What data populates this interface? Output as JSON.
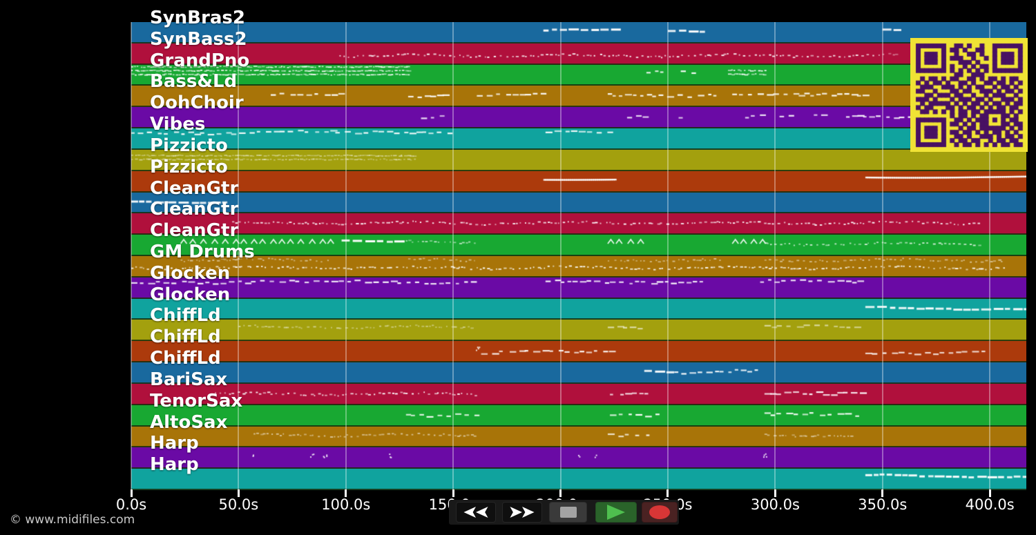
{
  "watermark": "© www.midifiles.com",
  "colors": {
    "background": "#000000",
    "note": "#ffffff",
    "gridline": "rgba(255,255,255,0.35)",
    "band_separator": "rgba(24,46,12,0.85)",
    "palette_cycle": [
      "#19699e",
      "#b0103c",
      "#18a832",
      "#a87408",
      "#6a0aa5",
      "#10a39e",
      "#a3a00e",
      "#ac3a0c"
    ],
    "qr_yellow": "#f0e335",
    "qr_purple": "#481163",
    "play_green": "#4fbf4f",
    "record_red": "#d83636",
    "stop_gray": "#a3a3a3"
  },
  "transport": {
    "buttons": [
      {
        "id": "rewind",
        "icon": "rewind-icon"
      },
      {
        "id": "fast-forward",
        "icon": "fast-forward-icon"
      },
      {
        "id": "stop",
        "icon": "stop-icon"
      },
      {
        "id": "play",
        "icon": "play-icon"
      },
      {
        "id": "record",
        "icon": "record-icon"
      }
    ]
  },
  "qr": {
    "rows": [
      "1111111001101001001111111",
      "1000001011010011001000001",
      "1011101001001101001011101",
      "1011101011100100101011101",
      "1011101000111010001011101",
      "1000001010010101101000001",
      "1111111010101010101111111",
      "0000000001100111000000000",
      "0101101011001101011010110",
      "1010110100110100110110101",
      "0111001110101011001011010",
      "1100100011011001110101101",
      "0011011101100100101110010",
      "1110100010111011010011101",
      "0101111101010110101101011",
      "1011000110101101010110110",
      "0110101010110110111110101",
      "0000000010110101100011010",
      "1111111001101011101010110",
      "1000001011010101100011011",
      "1011101000101101111110101",
      "1011101011011010101101010",
      "1011101001101001110101101",
      "1000001010110110010110110",
      "1111111001011010101011011"
    ]
  },
  "chart_data": {
    "type": "midi-track-timeline",
    "time_axis": {
      "unit": "s",
      "tick_interval_s": 50,
      "visible_duration_s": 417,
      "ticks": [
        {
          "value": 0,
          "label": "0.0s"
        },
        {
          "value": 50,
          "label": "50.0s"
        },
        {
          "value": 100,
          "label": "100.0s"
        },
        {
          "value": 150,
          "label": "150.0s"
        },
        {
          "value": 200,
          "label": "200.0s"
        },
        {
          "value": 250,
          "label": "250.0s"
        },
        {
          "value": 300,
          "label": "300.0s"
        },
        {
          "value": 350,
          "label": "350.0s"
        },
        {
          "value": 400,
          "label": "400.0s"
        }
      ]
    },
    "tracks": [
      {
        "name": "SynBras2",
        "color": "#19699e",
        "runs": [
          [
            192,
            224,
            "dashline",
            0.36
          ],
          [
            250,
            265,
            "dashline",
            0.34
          ],
          [
            350,
            358,
            "dashline",
            0.34
          ]
        ]
      },
      {
        "name": "SynBass2",
        "color": "#b0103c",
        "runs": [
          [
            97,
            349,
            "dots",
            0.55
          ],
          [
            350,
            357,
            "dots",
            0.52,
            0.6
          ]
        ]
      },
      {
        "name": "GrandPno",
        "color": "#18a832",
        "runs": [
          [
            0,
            129,
            "dense3",
            0.08
          ],
          [
            240,
            248,
            "dash",
            0.3
          ],
          [
            256,
            263,
            "dash",
            0.3
          ],
          [
            278,
            295,
            "dense2",
            0.25
          ]
        ]
      },
      {
        "name": "Bass&Ld",
        "color": "#a87408",
        "runs": [
          [
            65,
            98,
            "dash",
            0.4
          ],
          [
            129,
            145,
            "dash",
            0.4
          ],
          [
            161,
            192,
            "dash",
            0.42
          ],
          [
            222,
            275,
            "dash",
            0.4
          ],
          [
            280,
            341,
            "dash",
            0.4
          ]
        ]
      },
      {
        "name": "OohChoir",
        "color": "#6a0aa5",
        "runs": [
          [
            135,
            145,
            "dash",
            0.4,
            0.9
          ],
          [
            231,
            239,
            "dash",
            0.4
          ],
          [
            255,
            259,
            "dash",
            0.4
          ],
          [
            286,
            294,
            "dash",
            0.42
          ],
          [
            302,
            310,
            "dash",
            0.42
          ],
          [
            318,
            325,
            "dash",
            0.42
          ],
          [
            333,
            363,
            "dash",
            0.4
          ]
        ]
      },
      {
        "name": "Vibes",
        "color": "#10a39e",
        "runs": [
          [
            0,
            150,
            "dash",
            0.16
          ],
          [
            193,
            224,
            "dash",
            0.16
          ]
        ]
      },
      {
        "name": "Pizzicto",
        "color": "#a3a00e",
        "runs": [
          [
            0,
            132,
            "dense2",
            0.25,
            0.55
          ]
        ]
      },
      {
        "name": "Pizzicto",
        "color": "#ac3a0c",
        "runs": [
          [
            192,
            225,
            "line",
            0.34
          ],
          [
            342,
            417,
            "line",
            0.24
          ]
        ]
      },
      {
        "name": "CleanGtr",
        "color": "#19699e",
        "runs": [
          [
            0,
            45,
            "dashline",
            0.38
          ]
        ]
      },
      {
        "name": "CleanGtr",
        "color": "#b0103c",
        "runs": [
          [
            47,
            397,
            "dots",
            0.42
          ]
        ]
      },
      {
        "name": "CleanGtr",
        "color": "#18a832",
        "runs": [
          [
            23,
            95,
            "carets",
            0.3
          ],
          [
            98,
            124,
            "dashline",
            0.28
          ],
          [
            124,
            160,
            "dots",
            0.32,
            0.7
          ],
          [
            222,
            239,
            "carets",
            0.3
          ],
          [
            280,
            295,
            "carets",
            0.3
          ],
          [
            295,
            397,
            "dots",
            0.4,
            0.8
          ]
        ]
      },
      {
        "name": "GM Drums",
        "color": "#a87408",
        "runs": [
          [
            0,
            407,
            "dots",
            0.52
          ],
          [
            23,
            92,
            "dots",
            0.16,
            0.6
          ],
          [
            129,
            161,
            "dots",
            0.16,
            0.6
          ],
          [
            222,
            274,
            "dots",
            0.16,
            0.6
          ],
          [
            295,
            407,
            "dots",
            0.16,
            0.6
          ]
        ]
      },
      {
        "name": "Glocken",
        "color": "#6a0aa5",
        "runs": [
          [
            0,
            160,
            "dash",
            0.18
          ],
          [
            193,
            265,
            "dash",
            0.18
          ],
          [
            293,
            342,
            "dash",
            0.18
          ]
        ]
      },
      {
        "name": "Glocken",
        "color": "#10a39e",
        "runs": [
          [
            342,
            417,
            "dashline",
            0.4
          ]
        ]
      },
      {
        "name": "ChiffLd",
        "color": "#a3a00e",
        "runs": [
          [
            50,
            160,
            "dots",
            0.3,
            0.55
          ],
          [
            222,
            240,
            "dash",
            0.3,
            0.7
          ],
          [
            295,
            340,
            "dash",
            0.3,
            0.6
          ]
        ]
      },
      {
        "name": "ChiffLd",
        "color": "#ac3a0c",
        "runs": [
          [
            160,
            162,
            "specks",
            0.35
          ],
          [
            163,
            224,
            "dash",
            0.5
          ],
          [
            342,
            397,
            "dash",
            0.5
          ]
        ]
      },
      {
        "name": "ChiffLd",
        "color": "#19699e",
        "runs": [
          [
            239,
            253,
            "dashline",
            0.38
          ],
          [
            253,
            274,
            "dash",
            0.4
          ],
          [
            274,
            295,
            "dash",
            0.38
          ]
        ]
      },
      {
        "name": "BariSax",
        "color": "#b0103c",
        "runs": [
          [
            39,
            160,
            "dots",
            0.45
          ],
          [
            223,
            243,
            "dash",
            0.45
          ],
          [
            295,
            341,
            "dash",
            0.45
          ]
        ]
      },
      {
        "name": "TenorSax",
        "color": "#18a832",
        "runs": [
          [
            128,
            161,
            "dash",
            0.42
          ],
          [
            223,
            245,
            "dash",
            0.42
          ],
          [
            295,
            340,
            "dash",
            0.42
          ]
        ]
      },
      {
        "name": "AltoSax",
        "color": "#a87408",
        "runs": [
          [
            57,
            160,
            "dots",
            0.38,
            0.6
          ],
          [
            222,
            241,
            "dash",
            0.38
          ],
          [
            295,
            335,
            "dots",
            0.38,
            0.6
          ]
        ]
      },
      {
        "name": "Harp",
        "color": "#6a0aa5",
        "runs": [
          [
            56,
            58,
            "specks",
            0.35
          ],
          [
            83,
            85,
            "specks",
            0.35
          ],
          [
            89,
            91,
            "specks",
            0.35
          ],
          [
            119,
            121,
            "specks",
            0.35
          ],
          [
            208,
            210,
            "specks",
            0.35
          ],
          [
            215,
            217,
            "specks",
            0.35
          ],
          [
            294,
            296,
            "specks",
            0.35
          ]
        ]
      },
      {
        "name": "Harp",
        "color": "#10a39e",
        "runs": [
          [
            342,
            417,
            "dashline",
            0.28
          ]
        ]
      }
    ]
  }
}
